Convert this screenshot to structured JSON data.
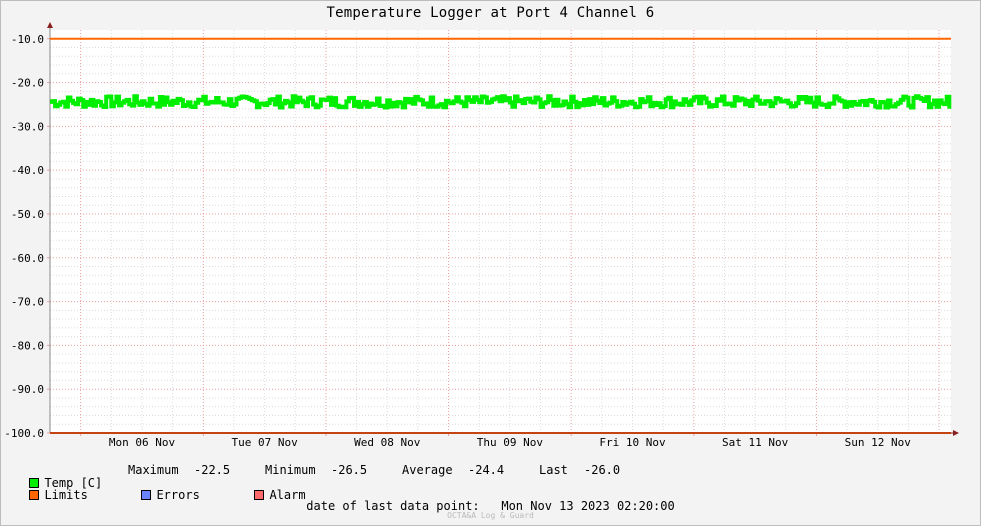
{
  "chart_data": {
    "type": "line",
    "title": "Temperature Logger at Port 4 Channel 6",
    "ylim": [
      -100.0,
      -8.0
    ],
    "y_ticks": [
      "-10.0",
      "-20.0",
      "-30.0",
      "-40.0",
      "-50.0",
      "-60.0",
      "-70.0",
      "-80.0",
      "-90.0",
      "-100.0"
    ],
    "y_tick_values": [
      -10,
      -20,
      -30,
      -40,
      -50,
      -60,
      -70,
      -80,
      -90,
      -100
    ],
    "x_range_days": [
      "2023-11-05 18:00",
      "2023-11-13 02:20"
    ],
    "x_ticks": [
      "Mon 06 Nov",
      "Tue 07 Nov",
      "Wed 08 Nov",
      "Thu 09 Nov",
      "Fri 10 Nov",
      "Sat 11 Nov",
      "Sun 12 Nov"
    ],
    "grid": true,
    "series": [
      {
        "name": "Temp [C]",
        "color": "#00ee00",
        "min": -26.5,
        "max": -22.5,
        "mean": -24.4,
        "last": -26.0,
        "pattern": "noisy band around -24.4 over the full range"
      },
      {
        "name": "Limits",
        "color": "#ff6600",
        "values": [
          -10.0,
          -100.0
        ]
      }
    ]
  },
  "legend": {
    "temp": "Temp [C]",
    "limits": "Limits",
    "errors": "Errors",
    "alarm": "Alarm",
    "colors": {
      "temp": "#00ee00",
      "limits": "#ff6600",
      "errors": "#6b82ff",
      "alarm": "#ff6a6a"
    }
  },
  "stats": {
    "max_label": "Maximum",
    "max_value": "-22.5",
    "min_label": "Minimum",
    "min_value": "-26.5",
    "avg_label": "Average",
    "avg_value": "-24.4",
    "last_label": "Last",
    "last_value": "-26.0"
  },
  "footer": {
    "date_label": "date of last data point:",
    "date_value": "Mon Nov 13 2023 02:20:00",
    "watermark": "OCTA&A Log & Guard"
  }
}
